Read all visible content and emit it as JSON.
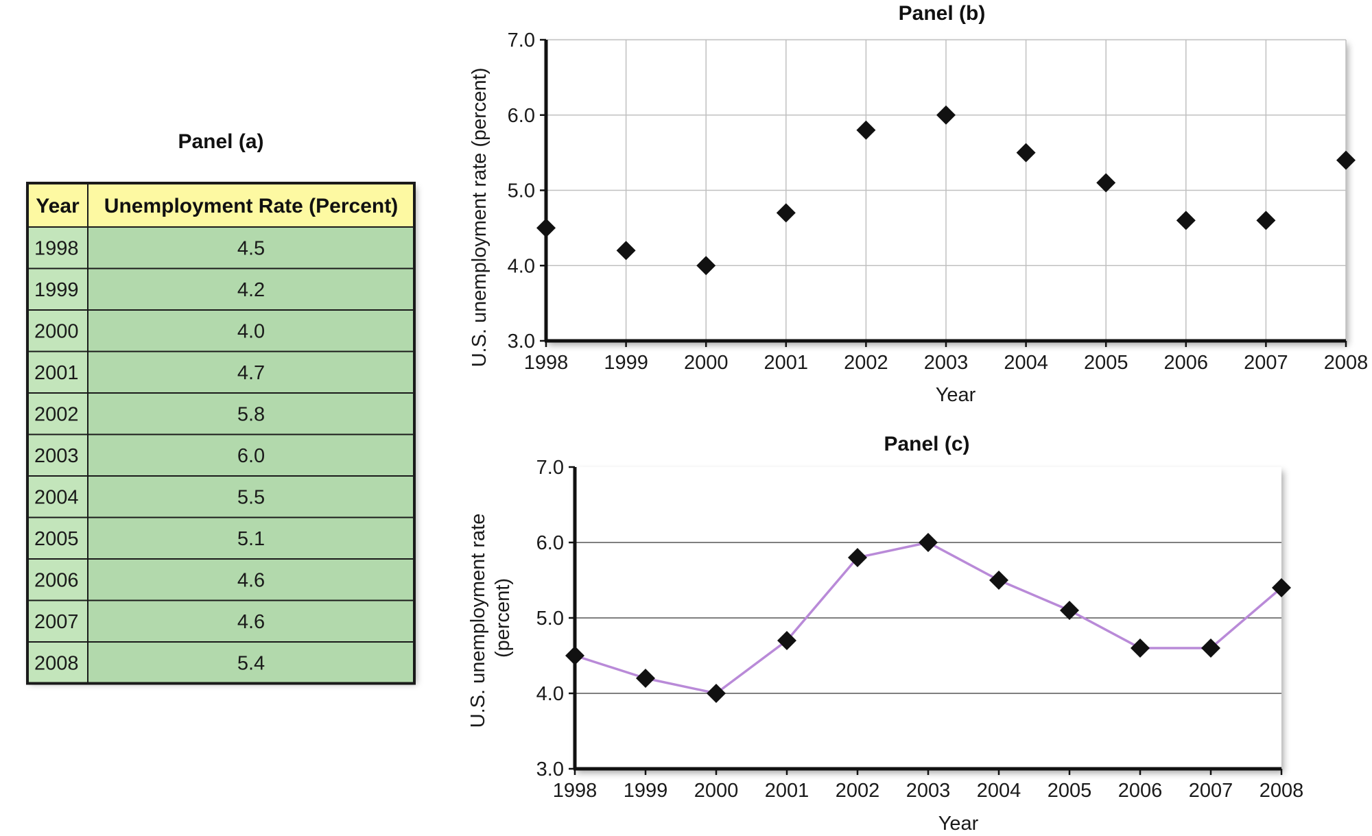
{
  "chart_data": [
    {
      "type": "table",
      "title": "Panel (a)",
      "columns": [
        "Year",
        "Unemployment Rate (Percent)"
      ],
      "rows": [
        [
          "1998",
          "4.5"
        ],
        [
          "1999",
          "4.2"
        ],
        [
          "2000",
          "4.0"
        ],
        [
          "2001",
          "4.7"
        ],
        [
          "2002",
          "5.8"
        ],
        [
          "2003",
          "6.0"
        ],
        [
          "2004",
          "5.5"
        ],
        [
          "2005",
          "5.1"
        ],
        [
          "2006",
          "4.6"
        ],
        [
          "2007",
          "4.6"
        ],
        [
          "2008",
          "5.4"
        ]
      ],
      "colors": {
        "header": "#fdf9a2",
        "year_col": "#c3e5bb",
        "value_col": "#b2d9ac",
        "border": "#1a1a1a"
      }
    },
    {
      "type": "scatter",
      "title": "Panel (b)",
      "xlabel": "Year",
      "ylabel": "U.S. unemployment rate (percent)",
      "x": [
        1998,
        1999,
        2000,
        2001,
        2002,
        2003,
        2004,
        2005,
        2006,
        2007,
        2008
      ],
      "y": [
        4.5,
        4.2,
        4.0,
        4.7,
        5.8,
        6.0,
        5.5,
        5.1,
        4.6,
        4.6,
        5.4
      ],
      "xlim": [
        1998,
        2008
      ],
      "ylim": [
        3.0,
        7.0
      ],
      "x_ticks": [
        "1998",
        "1999",
        "2000",
        "2001",
        "2002",
        "2003",
        "2004",
        "2005",
        "2006",
        "2007",
        "2008"
      ],
      "y_ticks": [
        "3.0",
        "4.0",
        "5.0",
        "6.0",
        "7.0"
      ],
      "grid": "both",
      "marker": "diamond",
      "colors": {
        "marker": "#111111",
        "grid": "#c0c0c0"
      }
    },
    {
      "type": "line",
      "title": "Panel (c)",
      "xlabel": "Year",
      "ylabel": "U.S. unemployment rate (percent)",
      "x": [
        1998,
        1999,
        2000,
        2001,
        2002,
        2003,
        2004,
        2005,
        2006,
        2007,
        2008
      ],
      "y": [
        4.5,
        4.2,
        4.0,
        4.7,
        5.8,
        6.0,
        5.5,
        5.1,
        4.6,
        4.6,
        5.4
      ],
      "xlim": [
        1998,
        2008
      ],
      "ylim": [
        3.0,
        7.0
      ],
      "x_ticks": [
        "1998",
        "1999",
        "2000",
        "2001",
        "2002",
        "2003",
        "2004",
        "2005",
        "2006",
        "2007",
        "2008"
      ],
      "y_ticks": [
        "3.0",
        "4.0",
        "5.0",
        "6.0",
        "7.0"
      ],
      "grid": "horizontal",
      "marker": "diamond",
      "colors": {
        "line": "#b98ad8",
        "marker": "#111111",
        "grid": "#555555"
      }
    }
  ]
}
